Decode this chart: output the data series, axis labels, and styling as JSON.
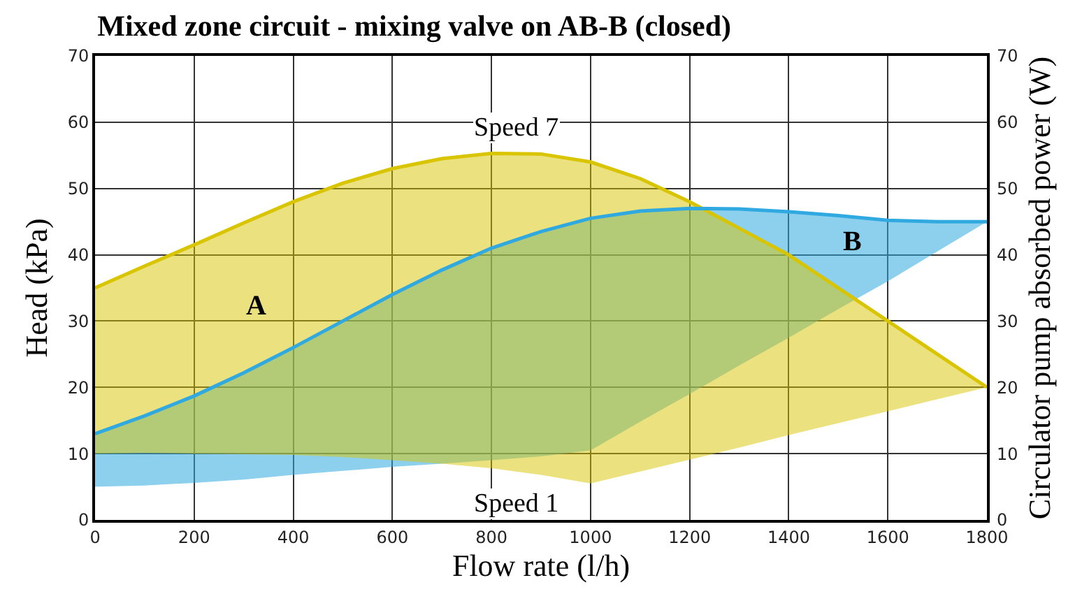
{
  "chart_data": {
    "type": "area",
    "title": "Mixed zone circuit - mixing valve on AB-B (closed)",
    "xlabel": "Flow rate (l/h)",
    "ylabel": "Head (kPa)",
    "y2label": "Circulator pump absorbed power (W)",
    "xlim": [
      0,
      1800
    ],
    "xticks": [
      0,
      200,
      400,
      600,
      800,
      1000,
      1200,
      1400,
      1600,
      1800
    ],
    "ylim": [
      0,
      70
    ],
    "yticks": [
      0,
      10,
      20,
      30,
      40,
      50,
      60,
      70
    ],
    "y2lim": [
      0,
      70
    ],
    "y2ticks": [
      0,
      10,
      20,
      30,
      40,
      50,
      60,
      70
    ],
    "grid": true,
    "series": [
      {
        "type": "line",
        "axis": "y",
        "color": "#d9c400",
        "x": [
          0,
          100,
          200,
          300,
          400,
          500,
          600,
          700,
          800,
          900,
          1000,
          1100,
          1200,
          1300,
          1400,
          1500,
          1600,
          1700,
          1800
        ],
        "values": [
          35,
          38.3,
          41.5,
          44.8,
          48,
          50.8,
          53,
          54.5,
          55.3,
          55.2,
          54,
          51.5,
          48,
          44,
          40,
          35,
          30,
          25,
          20
        ],
        "upper": [
          35,
          38.3,
          41.5,
          44.8,
          48,
          50.8,
          53,
          54.5,
          55.3,
          55.2,
          54,
          51.5,
          48,
          44,
          40,
          35,
          30,
          25,
          20
        ],
        "lower": [
          10,
          10.1,
          10,
          9.9,
          9.8,
          9.5,
          9,
          8.5,
          7.8,
          6.8,
          5.5,
          7.3,
          9.1,
          10.9,
          12.8,
          14.6,
          16.4,
          18.2,
          20
        ]
      },
      {
        "type": "line",
        "axis": "y2",
        "color": "#2fa9e0",
        "x": [
          0,
          100,
          200,
          300,
          400,
          500,
          600,
          700,
          800,
          900,
          1000,
          1100,
          1200,
          1300,
          1400,
          1500,
          1600,
          1700,
          1800
        ],
        "values": [
          13,
          15.7,
          18.7,
          22.2,
          26,
          30,
          34,
          37.7,
          41,
          43.5,
          45.5,
          46.6,
          47,
          46.9,
          46.5,
          45.9,
          45.2,
          45,
          45
        ],
        "upper": [
          13,
          15.7,
          18.7,
          22.2,
          26,
          30,
          34,
          37.7,
          41,
          43.5,
          45.5,
          46.6,
          47,
          46.9,
          46.5,
          45.9,
          45.2,
          45,
          45
        ],
        "lower": [
          5,
          5.2,
          5.6,
          6.1,
          6.8,
          7.4,
          8,
          8.5,
          9,
          9.6,
          10.5,
          14.8,
          19,
          23.3,
          27.5,
          31.8,
          36,
          40.5,
          45
        ]
      }
    ],
    "annotations": [
      "A",
      "B",
      "Speed 7",
      "Speed 1"
    ]
  }
}
